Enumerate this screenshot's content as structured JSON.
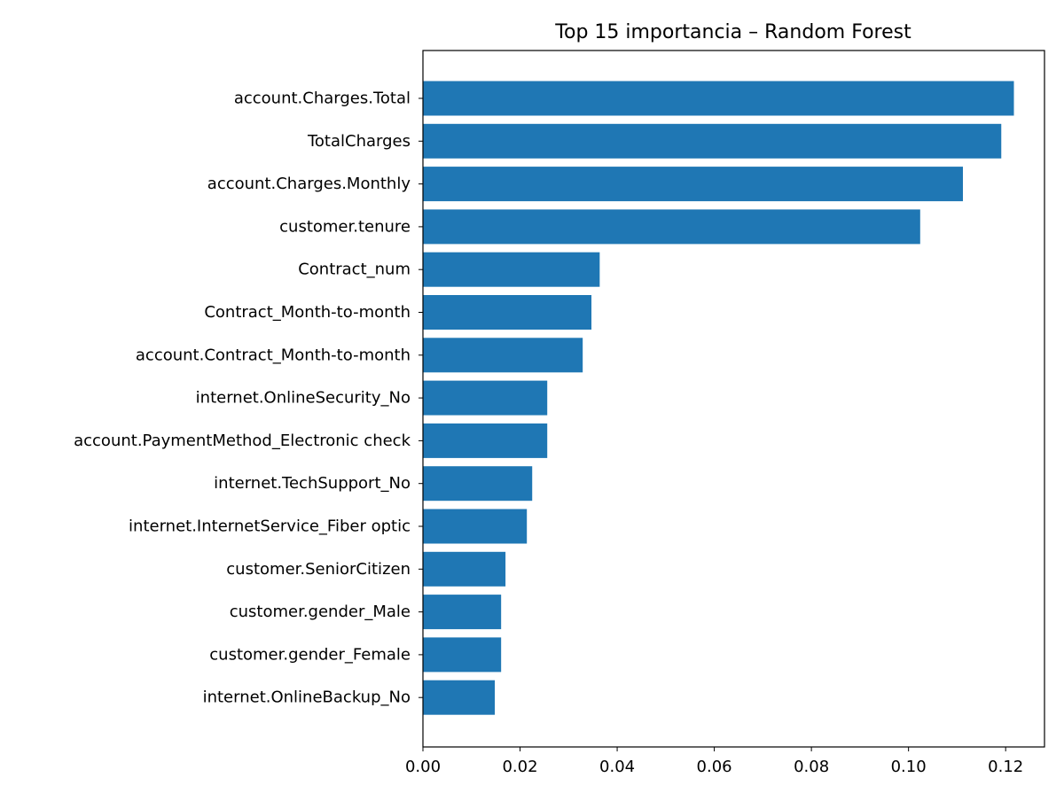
{
  "chart_data": {
    "type": "bar",
    "orientation": "horizontal",
    "title": "Top 15 importancia – Random Forest",
    "xlabel": "",
    "ylabel": "",
    "categories": [
      "account.Charges.Total",
      "TotalCharges",
      "account.Charges.Monthly",
      "customer.tenure",
      "Contract_num",
      "Contract_Month-to-month",
      "account.Contract_Month-to-month",
      "internet.OnlineSecurity_No",
      "account.PaymentMethod_Electronic check",
      "internet.TechSupport_No",
      "internet.InternetService_Fiber optic",
      "customer.SeniorCitizen",
      "customer.gender_Male",
      "customer.gender_Female",
      "internet.OnlineBackup_No"
    ],
    "values": [
      0.1217,
      0.1191,
      0.1112,
      0.1024,
      0.0364,
      0.0347,
      0.0329,
      0.0256,
      0.0256,
      0.0225,
      0.0214,
      0.017,
      0.0161,
      0.0161,
      0.0148
    ],
    "xlim": [
      0,
      0.128
    ],
    "xticks": [
      0.0,
      0.02,
      0.04,
      0.06,
      0.08,
      0.1,
      0.12
    ],
    "xtick_labels": [
      "0.00",
      "0.02",
      "0.04",
      "0.06",
      "0.08",
      "0.10",
      "0.12"
    ],
    "grid": false,
    "bar_color": "#1f77b4"
  }
}
